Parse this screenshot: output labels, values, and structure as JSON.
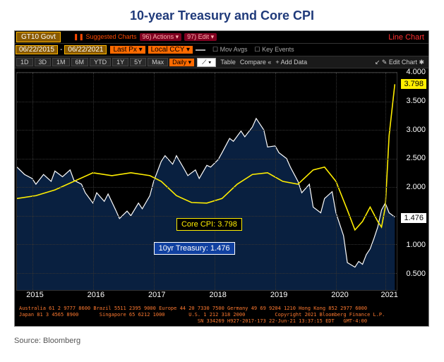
{
  "title": "10-year Treasury and Core CPI",
  "source": "Source: Bloomberg",
  "toolbar": {
    "ticker": "GT10 Govt",
    "suggested": "❚❚ Suggested Charts",
    "actions": "96) Actions ▾",
    "edit": "97) Edit ▾",
    "chart_type": "Line Chart",
    "date_from": "06/22/2015",
    "date_to": "06/22/2021",
    "last_px": "Last Px ▾",
    "local_ccy": "Local CCY ▾",
    "mov_avgs": "Mov Avgs",
    "key_events": "Key Events",
    "periods": [
      "1D",
      "3D",
      "1M",
      "6M",
      "YTD",
      "1Y",
      "5Y",
      "Max"
    ],
    "interval": "Daily ▾",
    "style": "⟋ ▾",
    "table": "Table",
    "compare": "Compare «",
    "add_data": "+ Add Data",
    "edit_chart": "↙ ✎ Edit Chart  ✱"
  },
  "chart": {
    "type": "line",
    "background_color": "#000000",
    "fill_color": "#0a2347",
    "grid_color": "#333333",
    "ylim": [
      0.2,
      4.0
    ],
    "yticks": [
      0.5,
      1.0,
      1.5,
      2.0,
      2.5,
      3.0,
      3.5,
      4.0
    ],
    "ytick_labels": [
      "0.500",
      "1.000",
      "1.500",
      "2.000",
      "2.500",
      "3.000",
      "3.500",
      "4.000"
    ],
    "x_labels": [
      "2015",
      "2016",
      "2017",
      "2018",
      "2019",
      "2020",
      "2021"
    ],
    "x_positions": [
      0.04,
      0.2,
      0.36,
      0.52,
      0.68,
      0.84,
      0.97
    ],
    "treasury_last": "1.476",
    "cpi_last": "3.798",
    "annotations": {
      "cpi": "Core CPI: 3.798",
      "treasury": "10yr Treasury: 1.476"
    },
    "series": {
      "treasury": {
        "color": "#ffffff",
        "width": 1.2,
        "points": [
          [
            0.0,
            2.35
          ],
          [
            0.02,
            2.22
          ],
          [
            0.04,
            2.15
          ],
          [
            0.05,
            2.05
          ],
          [
            0.07,
            2.22
          ],
          [
            0.09,
            2.1
          ],
          [
            0.1,
            2.28
          ],
          [
            0.12,
            2.18
          ],
          [
            0.14,
            2.3
          ],
          [
            0.15,
            2.12
          ],
          [
            0.17,
            2.05
          ],
          [
            0.18,
            1.9
          ],
          [
            0.2,
            1.72
          ],
          [
            0.21,
            1.9
          ],
          [
            0.23,
            1.75
          ],
          [
            0.24,
            1.88
          ],
          [
            0.26,
            1.6
          ],
          [
            0.27,
            1.45
          ],
          [
            0.29,
            1.58
          ],
          [
            0.3,
            1.5
          ],
          [
            0.32,
            1.72
          ],
          [
            0.33,
            1.62
          ],
          [
            0.35,
            1.85
          ],
          [
            0.36,
            2.1
          ],
          [
            0.38,
            2.45
          ],
          [
            0.39,
            2.55
          ],
          [
            0.41,
            2.4
          ],
          [
            0.42,
            2.55
          ],
          [
            0.44,
            2.32
          ],
          [
            0.45,
            2.2
          ],
          [
            0.47,
            2.3
          ],
          [
            0.48,
            2.15
          ],
          [
            0.5,
            2.38
          ],
          [
            0.51,
            2.35
          ],
          [
            0.53,
            2.48
          ],
          [
            0.54,
            2.6
          ],
          [
            0.56,
            2.85
          ],
          [
            0.57,
            2.8
          ],
          [
            0.59,
            2.98
          ],
          [
            0.6,
            2.88
          ],
          [
            0.62,
            3.05
          ],
          [
            0.63,
            3.2
          ],
          [
            0.65,
            3.0
          ],
          [
            0.66,
            2.7
          ],
          [
            0.68,
            2.72
          ],
          [
            0.69,
            2.6
          ],
          [
            0.71,
            2.5
          ],
          [
            0.72,
            2.35
          ],
          [
            0.74,
            2.1
          ],
          [
            0.75,
            1.9
          ],
          [
            0.77,
            2.05
          ],
          [
            0.78,
            1.65
          ],
          [
            0.8,
            1.55
          ],
          [
            0.81,
            1.8
          ],
          [
            0.83,
            1.92
          ],
          [
            0.84,
            1.55
          ],
          [
            0.86,
            1.15
          ],
          [
            0.87,
            0.68
          ],
          [
            0.89,
            0.6
          ],
          [
            0.9,
            0.7
          ],
          [
            0.91,
            0.65
          ],
          [
            0.92,
            0.82
          ],
          [
            0.93,
            0.92
          ],
          [
            0.94,
            1.1
          ],
          [
            0.95,
            1.3
          ],
          [
            0.96,
            1.6
          ],
          [
            0.97,
            1.72
          ],
          [
            0.98,
            1.55
          ],
          [
            0.995,
            1.476
          ]
        ]
      },
      "cpi": {
        "color": "#ffee00",
        "width": 1.6,
        "points": [
          [
            0.0,
            1.8
          ],
          [
            0.05,
            1.85
          ],
          [
            0.1,
            1.95
          ],
          [
            0.15,
            2.1
          ],
          [
            0.2,
            2.25
          ],
          [
            0.25,
            2.2
          ],
          [
            0.3,
            2.25
          ],
          [
            0.35,
            2.2
          ],
          [
            0.38,
            2.1
          ],
          [
            0.42,
            1.85
          ],
          [
            0.46,
            1.73
          ],
          [
            0.5,
            1.72
          ],
          [
            0.54,
            1.8
          ],
          [
            0.58,
            2.05
          ],
          [
            0.62,
            2.22
          ],
          [
            0.66,
            2.25
          ],
          [
            0.7,
            2.1
          ],
          [
            0.74,
            2.05
          ],
          [
            0.78,
            2.3
          ],
          [
            0.81,
            2.35
          ],
          [
            0.84,
            2.1
          ],
          [
            0.87,
            1.6
          ],
          [
            0.89,
            1.25
          ],
          [
            0.91,
            1.4
          ],
          [
            0.93,
            1.65
          ],
          [
            0.95,
            1.4
          ],
          [
            0.96,
            1.3
          ],
          [
            0.97,
            1.65
          ],
          [
            0.98,
            2.9
          ],
          [
            0.995,
            3.798
          ]
        ]
      }
    }
  },
  "footer": "Australia 61 2 9777 8600 Brazil 5511 2395 9000 Europe 44 20 7330 7500 Germany 49 69 9204 1210 Hong Kong 852 2977 6000\nJapan 81 3 4565 8900       Singapore 65 6212 1000        U.S. 1 212 318 2000          Copyright 2021 Bloomberg Finance L.P.\n                                                            SN 334269 H927-2017-173 22-Jun-21 13:37:15 EDT   GMT-4:00"
}
